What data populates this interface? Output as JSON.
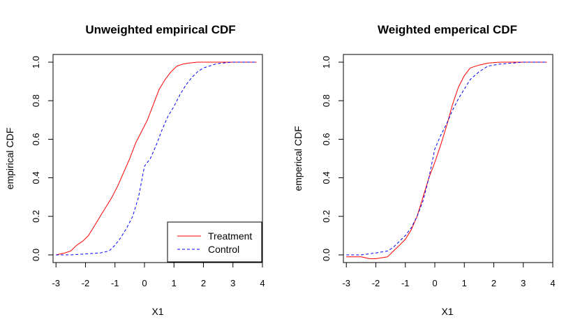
{
  "chart_data": [
    {
      "type": "line",
      "title": "Unweighted empirical CDF",
      "xlabel": "X1",
      "ylabel": "empirical CDF",
      "xlim": [
        -3.1,
        4.0
      ],
      "ylim": [
        -0.04,
        1.04
      ],
      "xticks": [
        -3,
        -2,
        -1,
        0,
        1,
        2,
        3,
        4
      ],
      "xtick_labels": [
        "-3",
        "-2",
        "-1",
        "0",
        "1",
        "2",
        "3",
        "4"
      ],
      "yticks": [
        0.0,
        0.2,
        0.4,
        0.6,
        0.8,
        1.0
      ],
      "ytick_labels": [
        "0.0",
        "0.2",
        "0.4",
        "0.6",
        "0.8",
        "1.0"
      ],
      "grid": false,
      "legend": {
        "position": "bottom-right",
        "entries": [
          {
            "label": "Treatment",
            "color": "#ff0000",
            "dash": "solid"
          },
          {
            "label": "Control",
            "color": "#0000ff",
            "dash": "dashed"
          }
        ]
      },
      "series": [
        {
          "name": "Treatment",
          "color": "#ff0000",
          "dash": "solid",
          "x": [
            -3.0,
            -2.7,
            -2.5,
            -2.3,
            -2.1,
            -1.9,
            -1.7,
            -1.5,
            -1.3,
            -1.1,
            -0.9,
            -0.7,
            -0.5,
            -0.3,
            -0.1,
            0.1,
            0.3,
            0.5,
            0.7,
            0.9,
            1.1,
            1.3,
            1.5,
            1.8,
            2.2,
            3.0,
            3.8
          ],
          "y": [
            0.0,
            0.01,
            0.02,
            0.05,
            0.07,
            0.1,
            0.15,
            0.2,
            0.25,
            0.3,
            0.36,
            0.43,
            0.5,
            0.58,
            0.64,
            0.7,
            0.78,
            0.86,
            0.91,
            0.95,
            0.98,
            0.99,
            0.995,
            1.0,
            1.0,
            1.0,
            1.0
          ]
        },
        {
          "name": "Control",
          "color": "#0000ff",
          "dash": "dashed",
          "x": [
            -3.0,
            -2.5,
            -2.0,
            -1.5,
            -1.2,
            -1.0,
            -0.8,
            -0.6,
            -0.4,
            -0.2,
            0.0,
            0.2,
            0.4,
            0.6,
            0.8,
            1.0,
            1.2,
            1.4,
            1.6,
            1.8,
            2.0,
            2.2,
            2.4,
            2.6,
            3.0,
            3.8
          ],
          "y": [
            0.0,
            0.0,
            0.005,
            0.01,
            0.02,
            0.05,
            0.09,
            0.14,
            0.2,
            0.3,
            0.46,
            0.5,
            0.57,
            0.65,
            0.72,
            0.77,
            0.83,
            0.88,
            0.92,
            0.95,
            0.97,
            0.98,
            0.99,
            0.995,
            1.0,
            1.0
          ]
        }
      ]
    },
    {
      "type": "line",
      "title": "Weighted emperical CDF",
      "xlabel": "X1",
      "ylabel": "emperical CDF",
      "xlim": [
        -3.1,
        4.0
      ],
      "ylim": [
        -0.04,
        1.04
      ],
      "xticks": [
        -3,
        -2,
        -1,
        0,
        1,
        2,
        3,
        4
      ],
      "xtick_labels": [
        "-3",
        "-2",
        "-1",
        "0",
        "1",
        "2",
        "3",
        "4"
      ],
      "yticks": [
        0.0,
        0.2,
        0.4,
        0.6,
        0.8,
        1.0
      ],
      "ytick_labels": [
        "0.0",
        "0.2",
        "0.4",
        "0.6",
        "0.8",
        "1.0"
      ],
      "grid": false,
      "series": [
        {
          "name": "Treatment",
          "color": "#ff0000",
          "dash": "solid",
          "x": [
            -3.0,
            -2.5,
            -2.2,
            -2.0,
            -1.6,
            -1.4,
            -1.2,
            -1.0,
            -0.8,
            -0.6,
            -0.4,
            -0.2,
            0.0,
            0.2,
            0.4,
            0.6,
            0.8,
            1.0,
            1.2,
            1.5,
            1.8,
            2.2,
            3.0,
            3.8
          ],
          "y": [
            -0.01,
            -0.01,
            -0.02,
            -0.02,
            -0.01,
            0.02,
            0.05,
            0.08,
            0.13,
            0.2,
            0.3,
            0.4,
            0.48,
            0.57,
            0.67,
            0.78,
            0.87,
            0.93,
            0.97,
            0.985,
            0.995,
            1.0,
            1.0,
            1.0
          ]
        },
        {
          "name": "Control",
          "color": "#0000ff",
          "dash": "dashed",
          "x": [
            -3.0,
            -2.5,
            -2.0,
            -1.6,
            -1.4,
            -1.2,
            -1.0,
            -0.8,
            -0.6,
            -0.4,
            -0.2,
            0.0,
            0.2,
            0.4,
            0.6,
            0.8,
            1.0,
            1.2,
            1.5,
            1.8,
            2.2,
            3.0,
            3.8
          ],
          "y": [
            0.0,
            0.0,
            0.01,
            0.02,
            0.04,
            0.07,
            0.1,
            0.14,
            0.2,
            0.28,
            0.4,
            0.55,
            0.62,
            0.68,
            0.75,
            0.81,
            0.86,
            0.91,
            0.95,
            0.98,
            0.99,
            1.0,
            1.0
          ]
        }
      ]
    }
  ]
}
